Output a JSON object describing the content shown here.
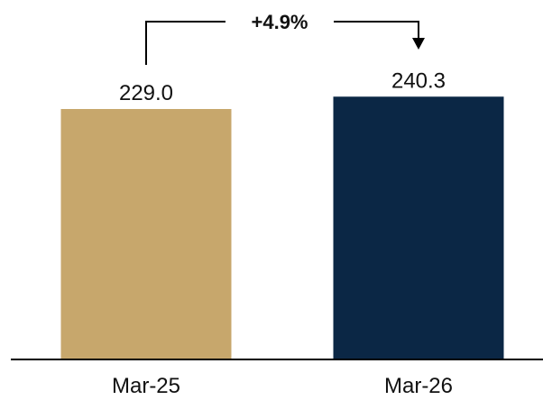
{
  "chart_data": {
    "type": "bar",
    "categories": [
      "Mar-25",
      "Mar-26"
    ],
    "values": [
      229.0,
      240.3
    ],
    "value_labels": [
      "229.0",
      "240.3"
    ],
    "colors": [
      "#C7A76C",
      "#0B2745"
    ],
    "change_label": "+4.9%",
    "ylim": [
      0,
      250
    ],
    "grid": false,
    "legend": "none"
  }
}
